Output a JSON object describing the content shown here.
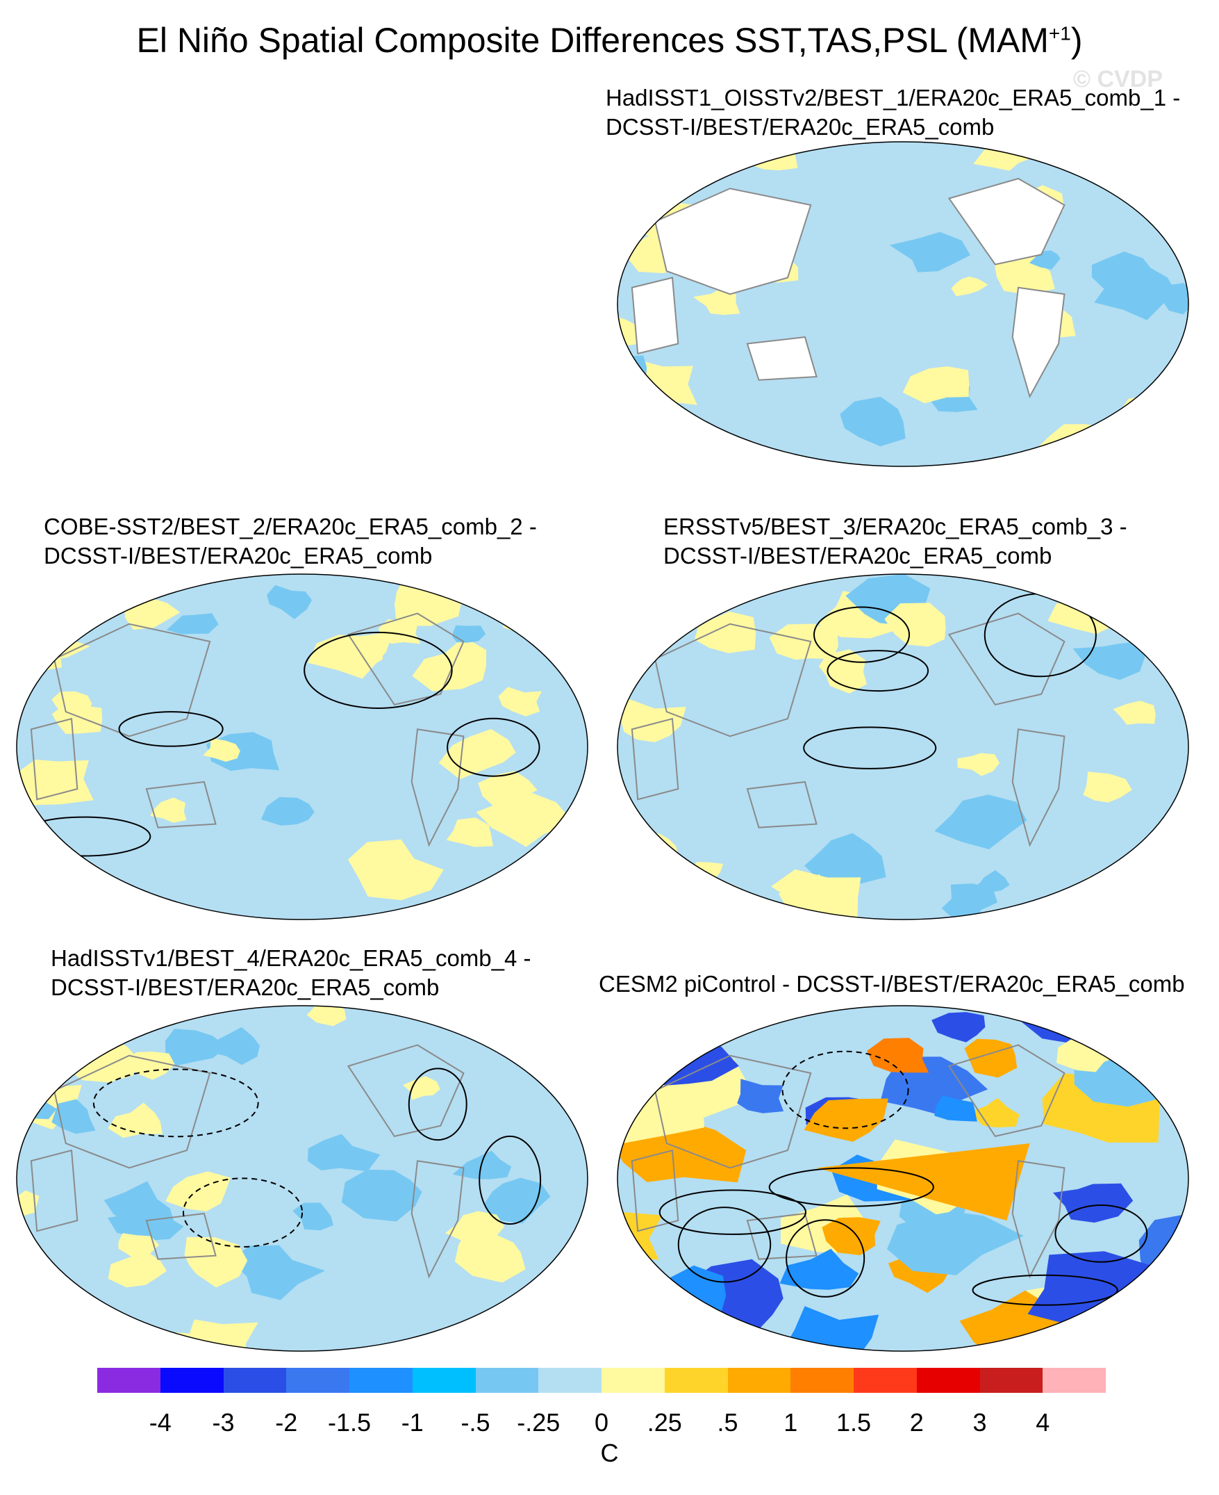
{
  "figure": {
    "title_main": "El Niño Spatial Composite Differences SST,TAS,PSL (MAM",
    "title_sup": "+1",
    "title_end": ")",
    "watermark": "© CVDP"
  },
  "panels": [
    {
      "id": "p1",
      "line1": "HadISST1_OISSTv2/BEST_1/ERA20c_ERA5_comb_1 -",
      "line2": "DCSST-I/BEST/ERA20c_ERA5_comb",
      "style": "weak"
    },
    {
      "id": "p2",
      "line1": "COBE-SST2/BEST_2/ERA20c_ERA5_comb_2 -",
      "line2": "DCSST-I/BEST/ERA20c_ERA5_comb",
      "style": "weak"
    },
    {
      "id": "p3",
      "line1": "ERSSTv5/BEST_3/ERA20c_ERA5_comb_3 -",
      "line2": "DCSST-I/BEST/ERA20c_ERA5_comb",
      "style": "weak"
    },
    {
      "id": "p4",
      "line1": "HadISSTv1/BEST_4/ERA20c_ERA5_comb_4 -",
      "line2": "DCSST-I/BEST/ERA20c_ERA5_comb",
      "style": "weak"
    },
    {
      "id": "p5",
      "line1": "CESM2 piControl - DCSST-I/BEST/ERA20c_ERA5_comb",
      "line2": "",
      "style": "strong"
    }
  ],
  "colorbar": {
    "colors": [
      "#8a2be2",
      "#0a0aff",
      "#2b4fe6",
      "#3a78f0",
      "#1e90ff",
      "#00bfff",
      "#76c8f2",
      "#b4def2",
      "#fff9a0",
      "#ffd42a",
      "#ffaa00",
      "#ff7f00",
      "#ff3a1a",
      "#e60000",
      "#c81e1e",
      "#ffb2b8"
    ],
    "ticks": [
      "-4",
      "-3",
      "-2",
      "-1.5",
      "-1",
      "-.5",
      "-.25",
      "0",
      ".25",
      ".5",
      "1",
      "1.5",
      "2",
      "3",
      "4"
    ],
    "unit": "C"
  }
}
